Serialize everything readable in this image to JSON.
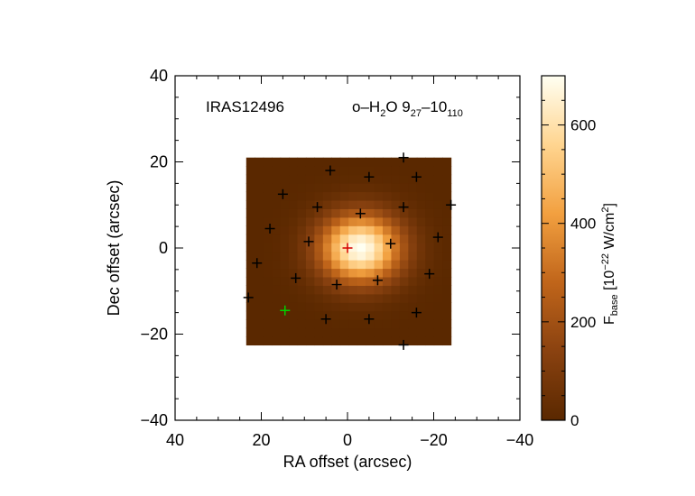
{
  "chart_data": {
    "type": "heatmap",
    "title_left": "IRAS12496",
    "title_right": {
      "prefix": "o–H",
      "sub1": "2",
      "mid": "O 9",
      "sub2": "27",
      "dash": "–10",
      "sub3": "110"
    },
    "xlabel": "RA offset (arcsec)",
    "ylabel": "Dec offset (arcsec)",
    "xlim": [
      40,
      -40
    ],
    "ylim": [
      -40,
      40
    ],
    "xticks": [
      {
        "value": 40,
        "label": "40"
      },
      {
        "value": 20,
        "label": "20"
      },
      {
        "value": 0,
        "label": "0"
      },
      {
        "value": -20,
        "label": "−20"
      },
      {
        "value": -40,
        "label": "−40"
      }
    ],
    "yticks": [
      {
        "value": 40,
        "label": "40"
      },
      {
        "value": 20,
        "label": "20"
      },
      {
        "value": 0,
        "label": "0"
      },
      {
        "value": -20,
        "label": "−20"
      },
      {
        "value": -40,
        "label": "−40"
      }
    ],
    "map_extent": {
      "x": [
        23.5,
        -24
      ],
      "y": [
        -22.5,
        21
      ]
    },
    "map_grid": {
      "nx": 24,
      "ny": 22
    },
    "source": {
      "x_center": -3,
      "y_center": 0,
      "peak": 700,
      "sigma_x": 6.5,
      "sigma_y": 5.5
    },
    "colorbar": {
      "label_main": "F",
      "label_sub": "base",
      "label_units": " [10",
      "label_exp": "−22",
      "label_units2": " W/cm",
      "label_exp2": "2",
      "label_close": "]",
      "range": [
        0,
        700
      ],
      "ticks": [
        {
          "value": 0,
          "label": "0"
        },
        {
          "value": 200,
          "label": "200"
        },
        {
          "value": 400,
          "label": "400"
        },
        {
          "value": 600,
          "label": "600"
        }
      ]
    },
    "spaxels": [
      {
        "x": -13,
        "y": 21,
        "color": "#000000"
      },
      {
        "x": 4,
        "y": 18,
        "color": "#000000"
      },
      {
        "x": -5,
        "y": 16.5,
        "color": "#000000"
      },
      {
        "x": -16,
        "y": 16.5,
        "color": "#000000"
      },
      {
        "x": 15,
        "y": 12.5,
        "color": "#000000"
      },
      {
        "x": 7,
        "y": 9.5,
        "color": "#000000"
      },
      {
        "x": -13,
        "y": 9.5,
        "color": "#000000"
      },
      {
        "x": -24,
        "y": 10,
        "color": "#000000"
      },
      {
        "x": -3,
        "y": 8,
        "color": "#000000"
      },
      {
        "x": 18,
        "y": 4.5,
        "color": "#000000"
      },
      {
        "x": 9,
        "y": 1.5,
        "color": "#000000"
      },
      {
        "x": -10,
        "y": 1,
        "color": "#000000"
      },
      {
        "x": -21,
        "y": 2.5,
        "color": "#000000"
      },
      {
        "x": 0,
        "y": 0,
        "color": "#d40000"
      },
      {
        "x": 21,
        "y": -3.5,
        "color": "#000000"
      },
      {
        "x": -19,
        "y": -6,
        "color": "#000000"
      },
      {
        "x": 12,
        "y": -7,
        "color": "#000000"
      },
      {
        "x": -7,
        "y": -7.5,
        "color": "#000000"
      },
      {
        "x": 2.5,
        "y": -8.5,
        "color": "#000000"
      },
      {
        "x": 23,
        "y": -11.5,
        "color": "#000000"
      },
      {
        "x": 14.5,
        "y": -14.5,
        "color": "#00d000"
      },
      {
        "x": 5,
        "y": -16.5,
        "color": "#000000"
      },
      {
        "x": -5,
        "y": -16.5,
        "color": "#000000"
      },
      {
        "x": -16,
        "y": -15,
        "color": "#000000"
      },
      {
        "x": -13,
        "y": -22.5,
        "color": "#000000"
      }
    ]
  }
}
